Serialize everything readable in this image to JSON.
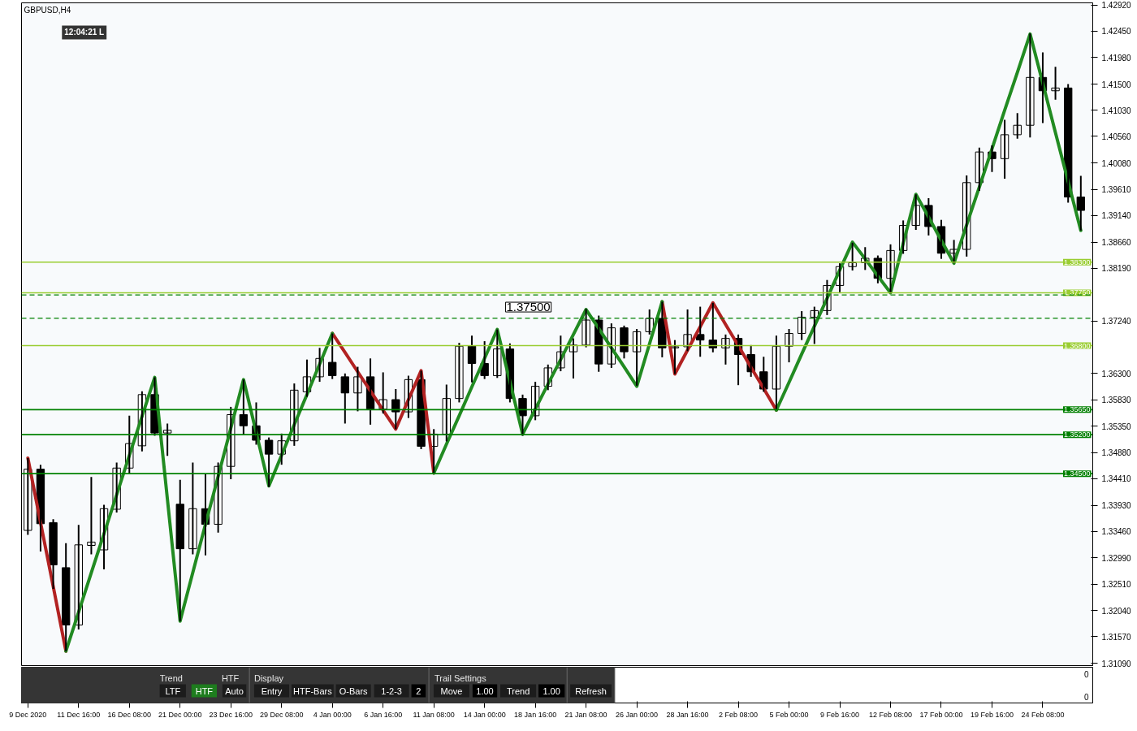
{
  "chart_data": {
    "type": "candlestick",
    "title": "GBPUSD,H4",
    "color": "#000000",
    "categories": [
      "9 Dec 2020",
      null,
      null,
      null,
      "11 Dec 16:00",
      null,
      null,
      null,
      "16 Dec 08:00",
      null,
      null,
      null,
      "21 Dec 00:00",
      null,
      null,
      null,
      "23 Dec 16:00",
      null,
      null,
      null,
      "29 Dec 08:00",
      null,
      null,
      null,
      "4 Jan 00:00",
      null,
      null,
      null,
      "6 Jan 16:00",
      null,
      null,
      null,
      "11 Jan 08:00",
      null,
      null,
      null,
      "14 Jan 00:00",
      null,
      null,
      null,
      "18 Jan 16:00",
      null,
      null,
      null,
      "21 Jan 08:00",
      null,
      null,
      null,
      "26 Jan 00:00",
      null,
      null,
      null,
      "28 Jan 16:00",
      null,
      null,
      null,
      "2 Feb 08:00",
      null,
      null,
      null,
      "5 Feb 00:00",
      null,
      null,
      null,
      "9 Feb 16:00",
      null,
      null,
      null,
      "12 Feb 08:00",
      null,
      null,
      null,
      "17 Feb 00:00",
      null,
      null,
      null,
      "19 Feb 16:00",
      null,
      null,
      null,
      "24 Feb 08:00",
      null,
      null,
      null
    ],
    "ohlc": [
      [
        1.3348,
        1.3478,
        1.334,
        1.3458
      ],
      [
        1.3458,
        1.3466,
        1.331,
        1.336
      ],
      [
        1.3362,
        1.3368,
        1.3243,
        1.3286
      ],
      [
        1.3281,
        1.3325,
        1.3131,
        1.3178
      ],
      [
        1.3178,
        1.3358,
        1.317,
        1.3322
      ],
      [
        1.3321,
        1.3444,
        1.3305,
        1.3327
      ],
      [
        1.3313,
        1.3394,
        1.3278,
        1.3387
      ],
      [
        1.3386,
        1.347,
        1.338,
        1.346
      ],
      [
        1.346,
        1.3554,
        1.3449,
        1.3504
      ],
      [
        1.35,
        1.3598,
        1.349,
        1.3592
      ],
      [
        1.3592,
        1.3623,
        1.3518,
        1.3523
      ],
      [
        1.3523,
        1.354,
        1.3482,
        1.3528
      ],
      [
        1.3395,
        1.3439,
        1.3185,
        1.3315
      ],
      [
        1.3315,
        1.347,
        1.3305,
        1.3387
      ],
      [
        1.3387,
        1.345,
        1.3303,
        1.3359
      ],
      [
        1.3359,
        1.347,
        1.3344,
        1.3463
      ],
      [
        1.3463,
        1.357,
        1.344,
        1.3556
      ],
      [
        1.3556,
        1.3619,
        1.352,
        1.3536
      ],
      [
        1.3536,
        1.3578,
        1.3502,
        1.351
      ],
      [
        1.351,
        1.3515,
        1.3426,
        1.3485
      ],
      [
        1.3485,
        1.3522,
        1.3466,
        1.3509
      ],
      [
        1.3509,
        1.3612,
        1.35,
        1.36
      ],
      [
        1.3597,
        1.3655,
        1.3588,
        1.3624
      ],
      [
        1.3624,
        1.3676,
        1.3615,
        1.3657
      ],
      [
        1.365,
        1.3702,
        1.362,
        1.3626
      ],
      [
        1.3624,
        1.363,
        1.354,
        1.3595
      ],
      [
        1.3595,
        1.3642,
        1.3562,
        1.3624
      ],
      [
        1.3624,
        1.3657,
        1.3538,
        1.3566
      ],
      [
        1.3566,
        1.3632,
        1.3558,
        1.3583
      ],
      [
        1.3583,
        1.3602,
        1.353,
        1.3561
      ],
      [
        1.3561,
        1.3626,
        1.355,
        1.3619
      ],
      [
        1.3619,
        1.3635,
        1.3494,
        1.3499
      ],
      [
        1.3499,
        1.353,
        1.3451,
        1.3521
      ],
      [
        1.3521,
        1.361,
        1.3508,
        1.3585
      ],
      [
        1.3585,
        1.3685,
        1.3578,
        1.3679
      ],
      [
        1.3679,
        1.3698,
        1.3614,
        1.3648
      ],
      [
        1.3648,
        1.3688,
        1.362,
        1.3626
      ],
      [
        1.3626,
        1.3709,
        1.3622,
        1.3674
      ],
      [
        1.3674,
        1.3684,
        1.3578,
        1.3585
      ],
      [
        1.3585,
        1.3592,
        1.3518,
        1.3554
      ],
      [
        1.3554,
        1.3615,
        1.3546,
        1.3607
      ],
      [
        1.3607,
        1.3646,
        1.36,
        1.364
      ],
      [
        1.364,
        1.3698,
        1.3634,
        1.3669
      ],
      [
        1.3669,
        1.3693,
        1.3621,
        1.3681
      ],
      [
        1.3681,
        1.3746,
        1.3677,
        1.3726
      ],
      [
        1.3726,
        1.3734,
        1.3633,
        1.3647
      ],
      [
        1.3647,
        1.372,
        1.364,
        1.3712
      ],
      [
        1.3712,
        1.3716,
        1.3657,
        1.3669
      ],
      [
        1.3669,
        1.371,
        1.3608,
        1.3705
      ],
      [
        1.3705,
        1.3745,
        1.37,
        1.3729
      ],
      [
        1.3729,
        1.3759,
        1.3659,
        1.3676
      ],
      [
        1.3676,
        1.369,
        1.3629,
        1.3678
      ],
      [
        1.3678,
        1.3745,
        1.367,
        1.37
      ],
      [
        1.37,
        1.375,
        1.366,
        1.369
      ],
      [
        1.369,
        1.3757,
        1.3668,
        1.3676
      ],
      [
        1.3676,
        1.37,
        1.3646,
        1.3693
      ],
      [
        1.3693,
        1.37,
        1.3609,
        1.3664
      ],
      [
        1.3664,
        1.3681,
        1.3624,
        1.3633
      ],
      [
        1.3633,
        1.366,
        1.3597,
        1.3602
      ],
      [
        1.3602,
        1.3698,
        1.3565,
        1.3679
      ],
      [
        1.3679,
        1.371,
        1.365,
        1.3702
      ],
      [
        1.3702,
        1.3742,
        1.369,
        1.3731
      ],
      [
        1.3731,
        1.375,
        1.3683,
        1.3743
      ],
      [
        1.3743,
        1.3798,
        1.3735,
        1.3788
      ],
      [
        1.3788,
        1.3828,
        1.3776,
        1.3822
      ],
      [
        1.3822,
        1.3865,
        1.3815,
        1.3829
      ],
      [
        1.3829,
        1.3857,
        1.3816,
        1.3837
      ],
      [
        1.3837,
        1.3842,
        1.3792,
        1.3801
      ],
      [
        1.3801,
        1.3862,
        1.3774,
        1.3851
      ],
      [
        1.3851,
        1.3905,
        1.3845,
        1.3896
      ],
      [
        1.3896,
        1.3952,
        1.3888,
        1.3932
      ],
      [
        1.3932,
        1.3945,
        1.3878,
        1.3894
      ],
      [
        1.3894,
        1.3906,
        1.3836,
        1.3846
      ],
      [
        1.3846,
        1.387,
        1.3828,
        1.3853
      ],
      [
        1.3853,
        1.3986,
        1.384,
        1.3973
      ],
      [
        1.3973,
        1.4036,
        1.3958,
        1.4028
      ],
      [
        1.4028,
        1.404,
        1.3992,
        1.4016
      ],
      [
        1.4016,
        1.4086,
        1.398,
        1.4059
      ],
      [
        1.4059,
        1.4098,
        1.4052,
        1.4076
      ],
      [
        1.4076,
        1.4241,
        1.4054,
        1.4162
      ],
      [
        1.4162,
        1.4207,
        1.408,
        1.4138
      ],
      [
        1.4138,
        1.4181,
        1.4122,
        1.4143
      ],
      [
        1.4143,
        1.415,
        1.3937,
        1.3947
      ],
      [
        1.3947,
        1.3985,
        1.3887,
        1.3923
      ]
    ],
    "series": [
      {
        "type": "line",
        "color": "#b22222",
        "values": [
          1.3478,
          1.3362,
          1.3247,
          1.3131,
          null,
          null,
          null,
          null,
          null,
          null,
          null,
          null,
          null,
          null,
          null,
          null,
          null,
          null,
          null,
          null,
          null,
          null,
          null,
          null,
          1.3702,
          1.3668,
          1.3633,
          1.3599,
          1.3564,
          1.353,
          1.3583,
          1.3635,
          1.3451,
          null,
          null,
          null,
          null,
          null,
          null,
          null,
          null,
          null,
          null,
          null,
          null,
          null,
          null,
          null,
          null,
          null,
          1.3759,
          1.3629,
          1.3672,
          1.3714,
          1.3757,
          1.3718,
          1.368,
          1.3641,
          1.3603,
          1.3564,
          null,
          null,
          null,
          null,
          null,
          null,
          null,
          null,
          null,
          null,
          null,
          null,
          null,
          null,
          null,
          null,
          null,
          null,
          null,
          null,
          null,
          null,
          null,
          null
        ]
      },
      {
        "type": "line",
        "color": "#228b22",
        "values": [
          null,
          null,
          null,
          1.3131,
          1.3201,
          1.3272,
          1.3342,
          1.3412,
          1.3483,
          1.3553,
          1.3623,
          1.3404,
          1.3185,
          1.3272,
          1.3359,
          1.3445,
          1.3532,
          1.3619,
          1.3524,
          1.3428,
          1.3483,
          1.3538,
          1.3592,
          1.3647,
          1.3702,
          null,
          null,
          null,
          null,
          null,
          null,
          null,
          1.3451,
          1.3503,
          1.3554,
          1.3606,
          1.3657,
          1.3709,
          1.3615,
          1.3521,
          1.3566,
          1.3611,
          1.3655,
          1.37,
          1.3745,
          1.3711,
          1.3676,
          1.3642,
          1.3607,
          1.3683,
          1.3759,
          null,
          null,
          null,
          null,
          null,
          null,
          null,
          null,
          1.3564,
          1.3614,
          1.3665,
          1.3715,
          1.3765,
          1.3816,
          1.3866,
          1.3836,
          1.3805,
          1.3775,
          1.3864,
          1.3952,
          1.3911,
          1.3869,
          1.3828,
          1.3897,
          1.3965,
          1.4034,
          1.4103,
          1.4171,
          1.424,
          1.4152,
          1.4063,
          1.3975,
          1.3887
        ]
      }
    ],
    "ylim": [
      1.3105,
      1.4296
    ],
    "yticks": [
      {
        "value": 1.4292,
        "label": "1.42920"
      },
      {
        "value": 1.4245,
        "label": "1.42450"
      },
      {
        "value": 1.4198,
        "label": "1.41980"
      },
      {
        "value": 1.415,
        "label": "1.41500"
      },
      {
        "value": 1.4103,
        "label": "1.41030"
      },
      {
        "value": 1.4056,
        "label": "1.40560"
      },
      {
        "value": 1.4008,
        "label": "1.40080"
      },
      {
        "value": 1.3961,
        "label": "1.39610"
      },
      {
        "value": 1.3914,
        "label": "1.39140"
      },
      {
        "value": 1.3866,
        "label": "1.38660"
      },
      {
        "value": 1.3819,
        "label": "1.38190"
      },
      {
        "value": 1.3724,
        "label": "1.37240"
      },
      {
        "value": 1.363,
        "label": "1.36300"
      },
      {
        "value": 1.3583,
        "label": "1.35830"
      },
      {
        "value": 1.3535,
        "label": "1.35350"
      },
      {
        "value": 1.3488,
        "label": "1.34880"
      },
      {
        "value": 1.3441,
        "label": "1.34410"
      },
      {
        "value": 1.3393,
        "label": "1.33930"
      },
      {
        "value": 1.3346,
        "label": "1.33460"
      },
      {
        "value": 1.3299,
        "label": "1.32990"
      },
      {
        "value": 1.3251,
        "label": "1.32510"
      },
      {
        "value": 1.3204,
        "label": "1.32040"
      },
      {
        "value": 1.3157,
        "label": "1.31570"
      },
      {
        "value": 1.3109,
        "label": "1.31090"
      }
    ],
    "ref_lines": [
      {
        "axis": "y",
        "value": 1.383,
        "label": "1.38300",
        "color": "#9acd32"
      },
      {
        "axis": "y",
        "value": 1.3775,
        "label": "1.37750",
        "color": "#9acd32"
      },
      {
        "axis": "y",
        "value": 1.368,
        "label": "1.36800",
        "color": "#9acd32"
      },
      {
        "axis": "y",
        "value": 1.3565,
        "label": "1.35650",
        "color": "#008000"
      },
      {
        "axis": "y",
        "value": 1.352,
        "label": "1.35200",
        "color": "#008000"
      },
      {
        "axis": "y",
        "value": 1.345,
        "label": "1.34500",
        "color": "#008000"
      },
      {
        "axis": "y",
        "value": 1.3771,
        "color": "#008000",
        "line_style": "dashed"
      },
      {
        "axis": "y",
        "value": 1.3729,
        "color": "#008000",
        "line_style": "dashed"
      }
    ],
    "annotations": [
      "12:04:21 L",
      "1.37500",
      "Trend",
      "LTF",
      "HTF",
      "HTF",
      "Auto",
      "Display",
      "Entry",
      "HTF-Bars",
      "O-Bars",
      "1-2-3",
      "2",
      "Trail Settings",
      "Move",
      "1.00",
      "Trend",
      "1.00",
      "Refresh",
      "0",
      "0"
    ],
    "grid": false
  }
}
